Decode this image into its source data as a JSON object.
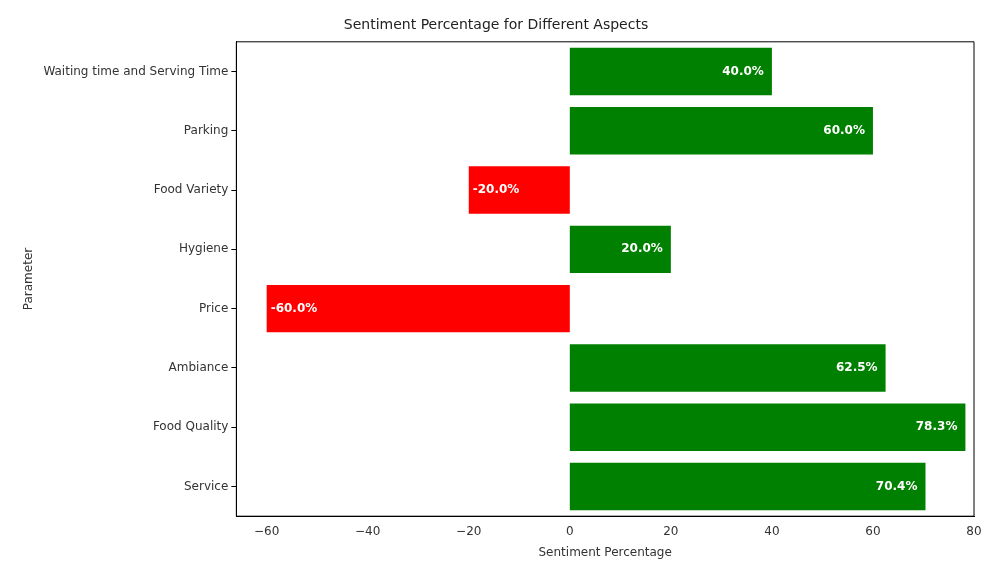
{
  "chart_data": {
    "type": "bar",
    "orientation": "horizontal",
    "title": "Sentiment Percentage for Different Aspects",
    "xlabel": "Sentiment Percentage",
    "ylabel": "Parameter",
    "categories": [
      "Waiting time and Serving Time",
      "Parking",
      "Food Variety",
      "Hygiene",
      "Price",
      "Ambiance",
      "Food Quality",
      "Service"
    ],
    "values": [
      40,
      60,
      -20,
      20,
      -60,
      62.5,
      78.3,
      70.4
    ],
    "colors": [
      "#008000",
      "#008000",
      "#ff0000",
      "#008000",
      "#ff0000",
      "#008000",
      "#008000",
      "#008000"
    ],
    "value_labels": [
      "40.0%",
      "60.0%",
      "-20.0%",
      "20.0%",
      "-60.0%",
      "62.5%",
      "78.3%",
      "70.4%"
    ],
    "xlim": [
      -66,
      80
    ],
    "xticks": [
      -60,
      -40,
      -20,
      0,
      20,
      40,
      60,
      80
    ],
    "grid": false,
    "legend": false
  }
}
